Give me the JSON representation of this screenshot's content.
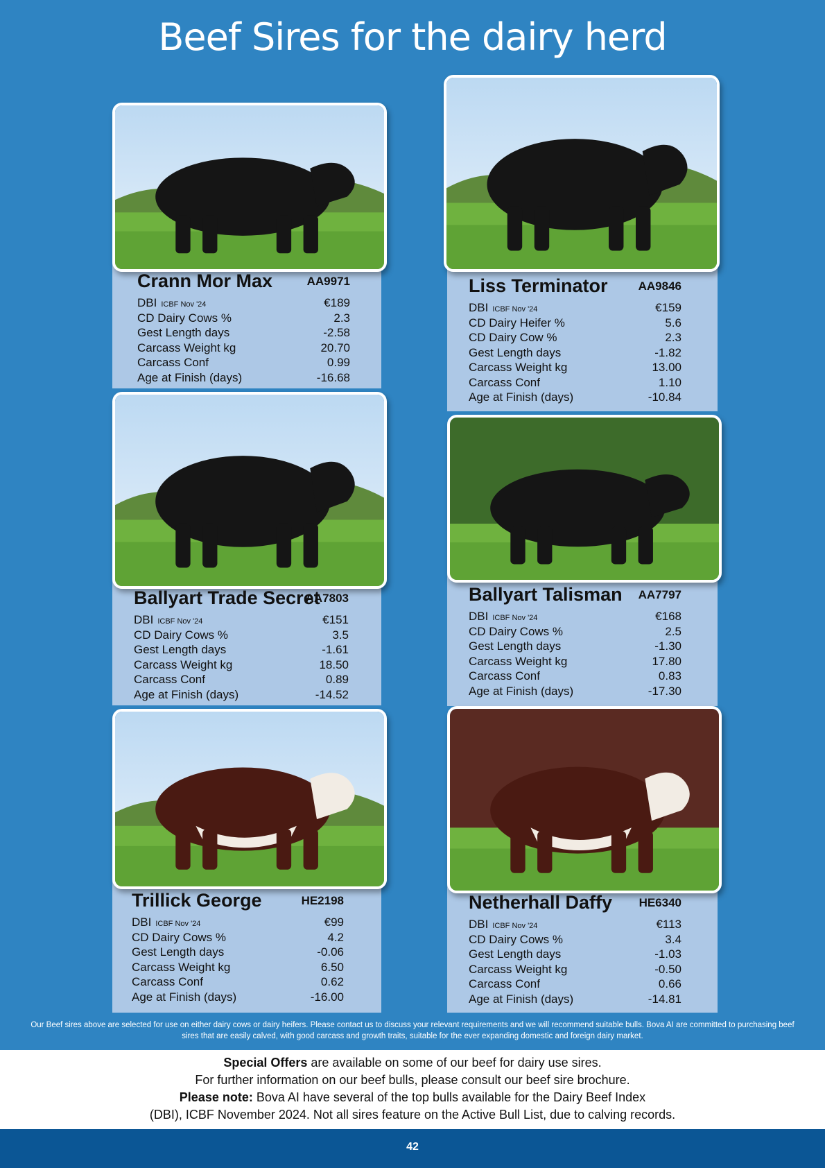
{
  "title": "Beef Sires for the dairy herd",
  "bulls": [
    {
      "name": "Crann Mor Max",
      "code": "AA9971",
      "dbi": {
        "label": "DBI",
        "sub": "ICBF Nov '24",
        "value": "€189"
      },
      "traits": [
        [
          "CD Dairy Cows %",
          "2.3"
        ],
        [
          "Gest Length days",
          "-2.58"
        ],
        [
          "Carcass Weight kg",
          "20.70"
        ],
        [
          "Carcass Conf",
          "0.99"
        ],
        [
          "Age at Finish (days)",
          "-16.68"
        ]
      ]
    },
    {
      "name": "Liss Terminator",
      "code": "AA9846",
      "dbi": {
        "label": "DBI",
        "sub": "ICBF Nov '24",
        "value": "€159"
      },
      "traits": [
        [
          "CD Dairy Heifer %",
          "5.6"
        ],
        [
          "CD Dairy Cow %",
          "2.3"
        ],
        [
          "Gest Length days",
          "-1.82"
        ],
        [
          "Carcass Weight kg",
          "13.00"
        ],
        [
          "Carcass Conf",
          "1.10"
        ],
        [
          "Age at Finish (days)",
          "-10.84"
        ]
      ]
    },
    {
      "name": "Ballyart Trade Secret",
      "code": "AA7803",
      "dbi": {
        "label": "DBI",
        "sub": "ICBF Nov '24",
        "value": "€151"
      },
      "traits": [
        [
          "CD Dairy Cows %",
          "3.5"
        ],
        [
          "Gest Length days",
          "-1.61"
        ],
        [
          "Carcass Weight kg",
          "18.50"
        ],
        [
          "Carcass Conf",
          "0.89"
        ],
        [
          "Age at Finish (days)",
          "-14.52"
        ]
      ]
    },
    {
      "name": "Ballyart Talisman",
      "code": "AA7797",
      "dbi": {
        "label": "DBI",
        "sub": "ICBF Nov '24",
        "value": "€168"
      },
      "traits": [
        [
          "CD Dairy Cows %",
          "2.5"
        ],
        [
          "Gest Length days",
          "-1.30"
        ],
        [
          "Carcass Weight kg",
          "17.80"
        ],
        [
          "Carcass Conf",
          "0.83"
        ],
        [
          "Age at Finish (days)",
          "-17.30"
        ]
      ]
    },
    {
      "name": "Trillick George",
      "code": "HE2198",
      "dbi": {
        "label": "DBI",
        "sub": "ICBF Nov '24",
        "value": "€99"
      },
      "traits": [
        [
          "CD Dairy Cows %",
          "4.2"
        ],
        [
          "Gest Length days",
          "-0.06"
        ],
        [
          "Carcass Weight kg",
          "6.50"
        ],
        [
          "Carcass Conf",
          "0.62"
        ],
        [
          "Age at Finish (days)",
          "-16.00"
        ]
      ]
    },
    {
      "name": "Netherhall Daffy",
      "code": "HE6340",
      "dbi": {
        "label": "DBI",
        "sub": "ICBF Nov '24",
        "value": "€113"
      },
      "traits": [
        [
          "CD Dairy Cows %",
          "3.4"
        ],
        [
          "Gest Length days",
          "-1.03"
        ],
        [
          "Carcass Weight kg",
          "-0.50"
        ],
        [
          "Carcass Conf",
          "0.66"
        ],
        [
          "Age at Finish (days)",
          "-14.81"
        ]
      ]
    }
  ],
  "footnote": "Our Beef sires above are selected for use on either dairy cows or dairy heifers. Please contact us to discuss your relevant requirements and we will recommend suitable bulls. Bova AI are committed to purchasing beef sires that are easily calved, with good carcass and growth traits, suitable for the ever expanding domestic and foreign dairy market.",
  "offer": {
    "special_bold": "Special Offers",
    "special_rest": " are available on some of our beef for dairy use sires.",
    "brochure": "For further information on our beef bulls, please consult our beef sire brochure.",
    "note_bold": "Please note:",
    "note_rest1": " Bova AI have several of the top bulls available for the Dairy Beef Index",
    "note_rest2": "(DBI), ICBF November 2024. Not all sires feature on the Active Bull List, due to calving records."
  },
  "page_number": "42",
  "photos": [
    {
      "icon": "black-angus-bull-photo",
      "coat": "#151515"
    },
    {
      "icon": "black-angus-bull-photo",
      "coat": "#151515"
    },
    {
      "icon": "black-angus-bull-photo",
      "coat": "#151515"
    },
    {
      "icon": "black-angus-bull-photo",
      "coat": "#151515"
    },
    {
      "icon": "hereford-bull-photo",
      "coat": "#4a1a12"
    },
    {
      "icon": "hereford-bull-photo",
      "coat": "#4a1a12"
    }
  ],
  "colors": {
    "page_blue": "#2f84c2",
    "card_blue": "#adc8e6",
    "footer_blue": "#0b5695"
  }
}
